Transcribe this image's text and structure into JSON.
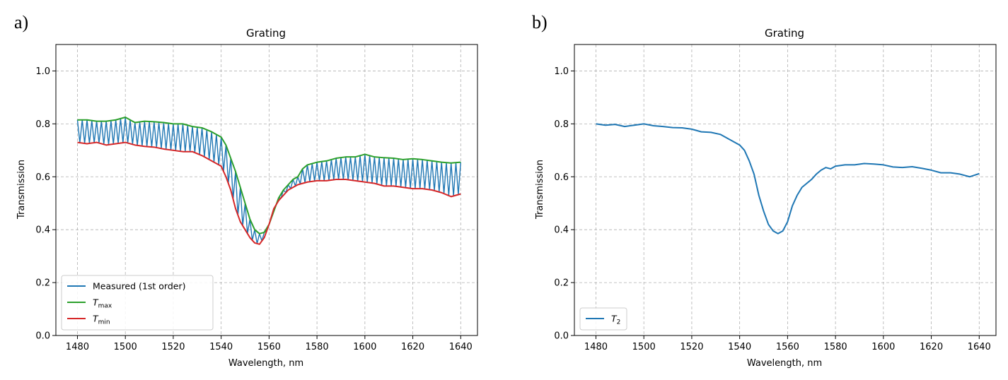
{
  "panels": [
    {
      "label": "a)"
    },
    {
      "label": "b)"
    }
  ],
  "chart_data": [
    {
      "type": "line",
      "title": "Grating",
      "xlabel": "Wavelength, nm",
      "ylabel": "Transmission",
      "xlim": [
        1471,
        1647
      ],
      "ylim": [
        0.0,
        1.1
      ],
      "xticks": [
        1480,
        1500,
        1520,
        1540,
        1560,
        1580,
        1600,
        1620,
        1640
      ],
      "yticks": [
        0.0,
        0.2,
        0.4,
        0.6,
        0.8,
        1.0
      ],
      "grid": true,
      "legend_position": "lower left",
      "legend": [
        {
          "label": "Measured (1st order)",
          "color": "#1f77b4"
        },
        {
          "label": "T",
          "subscript": "max",
          "color": "#2ca02c"
        },
        {
          "label": "T",
          "subscript": "min",
          "color": "#d62728"
        }
      ],
      "oscillation_period_nm": 2.0,
      "series": [
        {
          "name": "T_max",
          "color": "#2ca02c",
          "x": [
            1480,
            1484,
            1488,
            1492,
            1496,
            1500,
            1504,
            1508,
            1512,
            1516,
            1520,
            1524,
            1528,
            1532,
            1536,
            1540,
            1542,
            1544,
            1546,
            1548,
            1550,
            1552,
            1554,
            1556,
            1558,
            1560,
            1562,
            1564,
            1566,
            1568,
            1570,
            1572,
            1574,
            1576,
            1580,
            1584,
            1588,
            1592,
            1596,
            1600,
            1604,
            1608,
            1612,
            1616,
            1620,
            1624,
            1628,
            1632,
            1636,
            1640
          ],
          "y": [
            0.815,
            0.815,
            0.81,
            0.81,
            0.815,
            0.825,
            0.805,
            0.81,
            0.808,
            0.805,
            0.8,
            0.8,
            0.79,
            0.785,
            0.77,
            0.75,
            0.72,
            0.67,
            0.62,
            0.56,
            0.5,
            0.44,
            0.4,
            0.385,
            0.39,
            0.42,
            0.47,
            0.52,
            0.55,
            0.57,
            0.59,
            0.6,
            0.63,
            0.645,
            0.655,
            0.66,
            0.67,
            0.675,
            0.675,
            0.685,
            0.675,
            0.672,
            0.67,
            0.665,
            0.668,
            0.665,
            0.66,
            0.655,
            0.652,
            0.655
          ]
        },
        {
          "name": "T_min",
          "color": "#d62728",
          "x": [
            1480,
            1484,
            1488,
            1492,
            1496,
            1500,
            1504,
            1508,
            1512,
            1516,
            1520,
            1524,
            1528,
            1532,
            1536,
            1540,
            1542,
            1544,
            1546,
            1548,
            1550,
            1552,
            1554,
            1556,
            1558,
            1560,
            1562,
            1564,
            1566,
            1568,
            1570,
            1572,
            1574,
            1576,
            1580,
            1584,
            1588,
            1592,
            1596,
            1600,
            1604,
            1608,
            1612,
            1616,
            1620,
            1624,
            1628,
            1632,
            1636,
            1640
          ],
          "y": [
            0.73,
            0.725,
            0.73,
            0.72,
            0.725,
            0.73,
            0.72,
            0.715,
            0.712,
            0.705,
            0.7,
            0.695,
            0.695,
            0.68,
            0.66,
            0.64,
            0.6,
            0.55,
            0.48,
            0.43,
            0.4,
            0.37,
            0.35,
            0.345,
            0.37,
            0.42,
            0.48,
            0.51,
            0.53,
            0.55,
            0.56,
            0.57,
            0.575,
            0.58,
            0.585,
            0.585,
            0.59,
            0.59,
            0.585,
            0.58,
            0.575,
            0.565,
            0.565,
            0.56,
            0.555,
            0.555,
            0.55,
            0.54,
            0.525,
            0.535
          ]
        }
      ]
    },
    {
      "type": "line",
      "title": "Grating",
      "xlabel": "Wavelength, nm",
      "ylabel": "Transmission",
      "xlim": [
        1471,
        1647
      ],
      "ylim": [
        0.0,
        1.1
      ],
      "xticks": [
        1480,
        1500,
        1520,
        1540,
        1560,
        1580,
        1600,
        1620,
        1640
      ],
      "yticks": [
        0.0,
        0.2,
        0.4,
        0.6,
        0.8,
        1.0
      ],
      "grid": true,
      "legend_position": "lower left",
      "legend": [
        {
          "label": "T",
          "subscript": "2",
          "color": "#1f77b4"
        }
      ],
      "series": [
        {
          "name": "T_2",
          "color": "#1f77b4",
          "x": [
            1480,
            1484,
            1488,
            1492,
            1496,
            1500,
            1504,
            1508,
            1512,
            1516,
            1520,
            1524,
            1528,
            1532,
            1536,
            1540,
            1542,
            1544,
            1546,
            1548,
            1550,
            1552,
            1554,
            1556,
            1558,
            1560,
            1562,
            1564,
            1566,
            1568,
            1570,
            1572,
            1574,
            1576,
            1578,
            1580,
            1584,
            1588,
            1592,
            1596,
            1600,
            1604,
            1608,
            1612,
            1616,
            1620,
            1624,
            1628,
            1632,
            1636,
            1640
          ],
          "y": [
            0.8,
            0.795,
            0.798,
            0.79,
            0.795,
            0.8,
            0.793,
            0.79,
            0.786,
            0.785,
            0.78,
            0.77,
            0.768,
            0.76,
            0.74,
            0.72,
            0.7,
            0.66,
            0.61,
            0.53,
            0.47,
            0.42,
            0.395,
            0.385,
            0.395,
            0.43,
            0.49,
            0.53,
            0.56,
            0.575,
            0.59,
            0.61,
            0.625,
            0.635,
            0.63,
            0.64,
            0.645,
            0.645,
            0.65,
            0.648,
            0.645,
            0.637,
            0.635,
            0.638,
            0.632,
            0.625,
            0.615,
            0.615,
            0.61,
            0.6,
            0.612
          ]
        }
      ]
    }
  ]
}
